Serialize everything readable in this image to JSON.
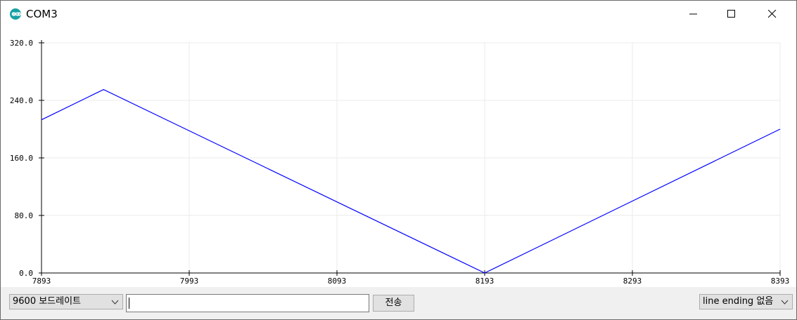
{
  "window": {
    "title": "COM3"
  },
  "titlebar": {
    "icon": "arduino-infinity-icon"
  },
  "controls": {
    "minimize": "minimize-icon",
    "maximize": "maximize-icon",
    "close": "close-icon"
  },
  "chart_data": {
    "type": "line",
    "title": "",
    "xlabel": "",
    "ylabel": "",
    "xlim": [
      7893,
      8393
    ],
    "ylim": [
      0,
      320
    ],
    "xticks": [
      "7893",
      "7993",
      "8093",
      "8193",
      "8293",
      "8393"
    ],
    "yticks": [
      "0.0",
      "80.0",
      "160.0",
      "240.0",
      "320.0"
    ],
    "grid": true,
    "color": "#0000ff",
    "series": [
      {
        "x": [
          7893,
          7935,
          8193,
          8393
        ],
        "y": [
          213,
          255,
          0,
          200
        ]
      }
    ]
  },
  "bottom": {
    "baud": "9600 보드레이트",
    "input_value": "",
    "send_label": "전송",
    "line_ending": "line ending 없음"
  }
}
